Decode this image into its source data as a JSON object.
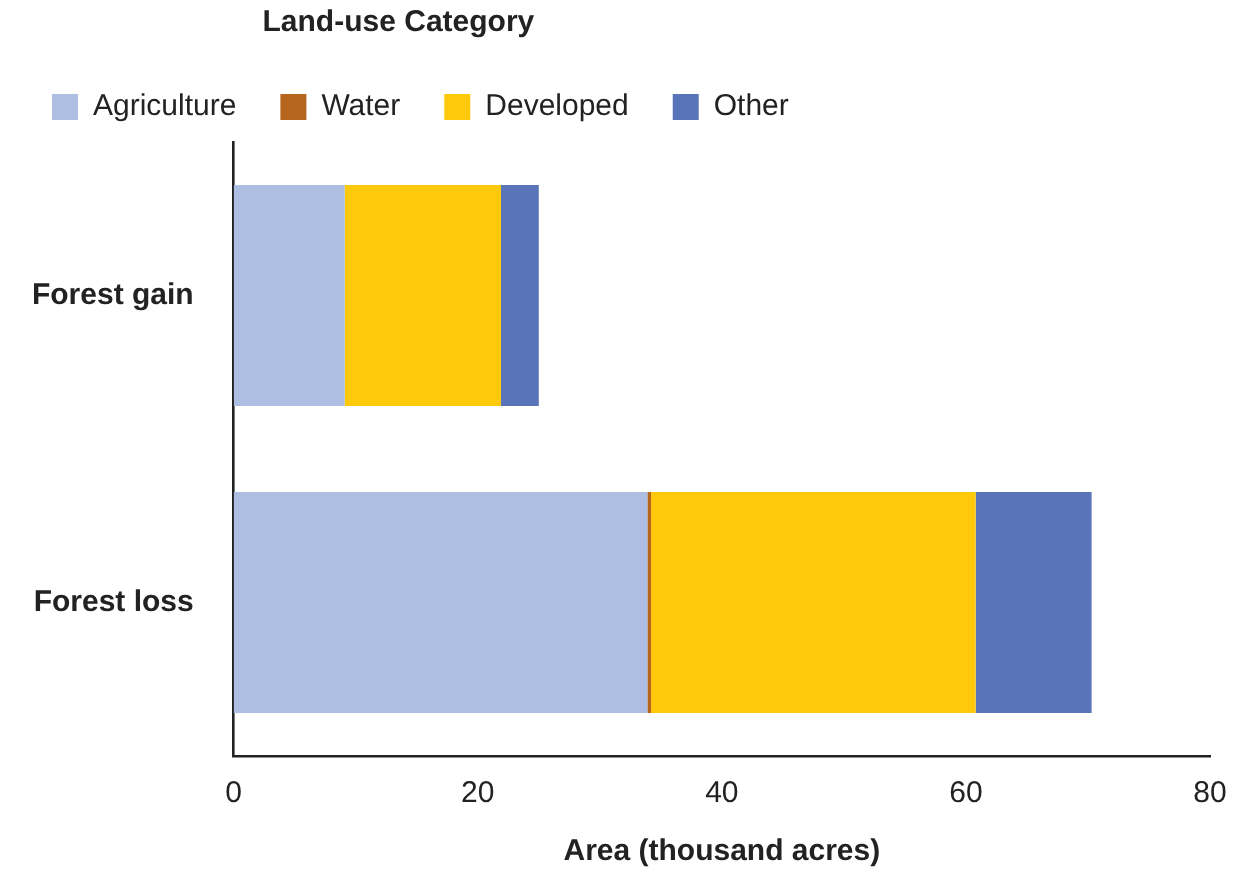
{
  "chart_data": {
    "type": "bar",
    "orientation": "horizontal",
    "stacked": true,
    "categories": [
      "Forest gain",
      "Forest loss"
    ],
    "series": [
      {
        "name": "Agriculture",
        "color": "#adbee2",
        "values": [
          9.1,
          33.9
        ]
      },
      {
        "name": "Water",
        "color": "#b5651d",
        "values": [
          0,
          0.3
        ]
      },
      {
        "name": "Developed",
        "color": "#fec90a",
        "values": [
          12.8,
          26.6
        ]
      },
      {
        "name": "Other",
        "color": "#5a74b9",
        "values": [
          3.1,
          9.5
        ]
      }
    ],
    "xlabel": "Area (thousand acres)",
    "legend_title": "Land-use Category",
    "xlim": [
      0,
      80
    ],
    "xticks": [
      0,
      20,
      40,
      60,
      80
    ],
    "grid": false,
    "legend": "top left"
  }
}
